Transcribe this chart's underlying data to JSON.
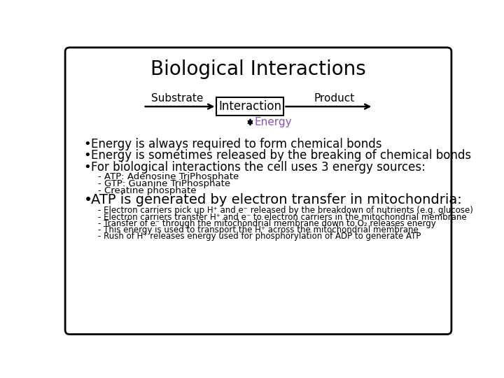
{
  "title": "Biological Interactions",
  "title_fontsize": 20,
  "title_fontweight": "normal",
  "bg_color": "#ffffff",
  "border_color": "#000000",
  "diagram": {
    "substrate_label": "Substrate",
    "interaction_label": "Interaction",
    "product_label": "Product",
    "energy_label": "Energy",
    "energy_color": "#8855bb"
  },
  "bullets": [
    {
      "text": "Energy is always required to form chemical bonds",
      "indent": 0,
      "fontsize": 12,
      "bold": false
    },
    {
      "text": "Energy is sometimes released by the breaking of chemical bonds",
      "indent": 0,
      "fontsize": 12,
      "bold": false
    },
    {
      "text": "For biological interactions the cell uses 3 energy sources:",
      "indent": 0,
      "fontsize": 12,
      "bold": false
    },
    {
      "text": "- ATP: Adenosine TriPhosphate",
      "indent": 1,
      "fontsize": 9.5,
      "bold": false
    },
    {
      "text": "- GTP: Guanine TriPhosphate",
      "indent": 1,
      "fontsize": 9.5,
      "bold": false
    },
    {
      "text": "- Creatine phosphate",
      "indent": 1,
      "fontsize": 9.5,
      "bold": false
    },
    {
      "text": "ATP is generated by electron transfer in mitochondria:",
      "indent": 0,
      "fontsize": 14,
      "bold": false
    },
    {
      "text": "- Electron carriers pick up H⁺ and e⁻ released by the breakdown of nutrients (e.g. glucose)",
      "indent": 1,
      "fontsize": 8.5,
      "bold": false
    },
    {
      "text": "- Electron carriers transfer H⁺ and e⁻ to electron carriers in the mitochondrial membrane",
      "indent": 1,
      "fontsize": 8.5,
      "bold": false
    },
    {
      "text": "- Transfer of e⁻ through the mitochondrial membrane down to O₂ releases energy",
      "indent": 1,
      "fontsize": 8.5,
      "bold": false
    },
    {
      "text": "- This energy is used to transport the H⁺ across the mitochondrial membrane",
      "indent": 1,
      "fontsize": 8.5,
      "bold": false
    },
    {
      "text": "- Rush of H⁺ releases energy used for phosphorylation of ADP to generate ATP",
      "indent": 1,
      "fontsize": 8.5,
      "bold": false
    }
  ],
  "line_spacing": {
    "main_12": 21,
    "main_14": 24,
    "sub_9": 13,
    "sub_8": 12
  }
}
